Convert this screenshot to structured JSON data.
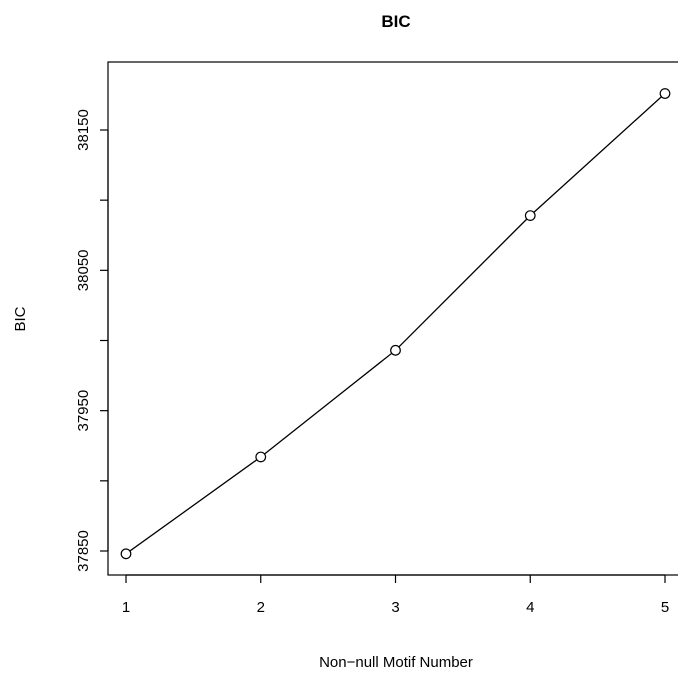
{
  "chart_data": {
    "type": "line",
    "title": "BIC",
    "xlabel": "Non−null Motif Number",
    "ylabel": "BIC",
    "x": [
      1,
      2,
      3,
      4,
      5
    ],
    "y": [
      37848,
      37917,
      37993,
      38089,
      38176
    ],
    "xlim": [
      1,
      5
    ],
    "ylim": [
      37850,
      38150
    ],
    "xticks": [
      "1",
      "2",
      "3",
      "4",
      "5"
    ],
    "yticks": [
      37850,
      37900,
      37950,
      38000,
      38050,
      38100,
      38150
    ],
    "ytick_labels": [
      "37850",
      "",
      "37950",
      "",
      "38050",
      "",
      "38150"
    ],
    "markers": "open-circle",
    "line_color": "#000000",
    "grid": false,
    "legend": "none"
  }
}
